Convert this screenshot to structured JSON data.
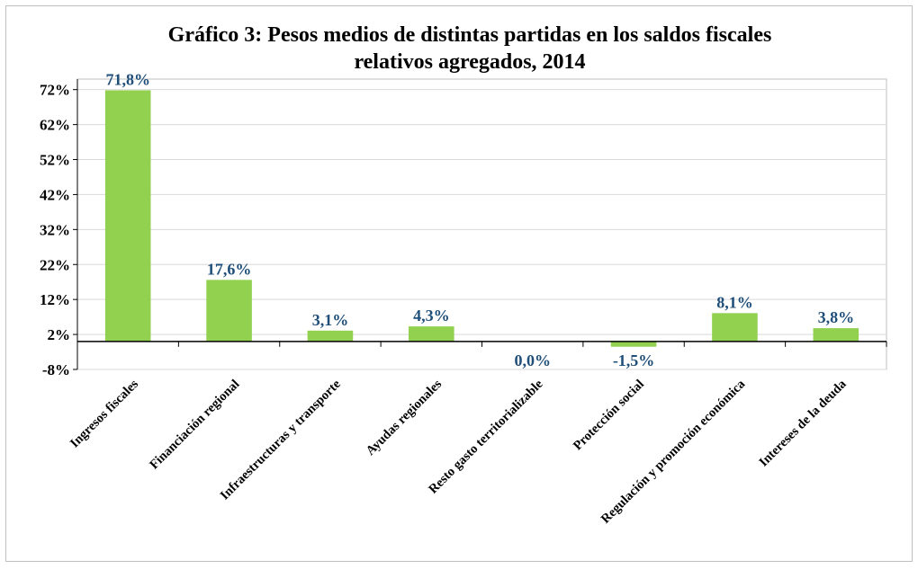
{
  "chart_data": {
    "type": "bar",
    "title": [
      "Gráfico 3: Pesos medios de distintas partidas en los saldos fiscales",
      "relativos agregados, 2014"
    ],
    "categories": [
      "Ingresos fiscales",
      "Financiación regional",
      "Infraestructuras y transporte",
      "Ayudas regionales",
      "Resto gasto territorializable",
      "Protección social",
      "Regulación y promoción económica",
      "Intereses de la deuda"
    ],
    "values": [
      71.8,
      17.6,
      3.1,
      4.3,
      0.0,
      -1.5,
      8.1,
      3.8
    ],
    "data_labels": [
      "71,8%",
      "17,6%",
      "3,1%",
      "4,3%",
      "0,0%",
      "-1,5%",
      "8,1%",
      "3,8%"
    ],
    "yticks": [
      -8,
      2,
      12,
      22,
      32,
      42,
      52,
      62,
      72
    ],
    "ytick_labels": [
      "-8%",
      "2%",
      "12%",
      "22%",
      "32%",
      "42%",
      "52%",
      "62%",
      "72%"
    ],
    "ylim": [
      -8,
      75
    ],
    "xlabel": "",
    "ylabel": "",
    "grid": true,
    "colors": {
      "bar": "#92d050",
      "label": "#1f4e79",
      "grid": "#d9d9d9",
      "axis": "#000000"
    }
  }
}
